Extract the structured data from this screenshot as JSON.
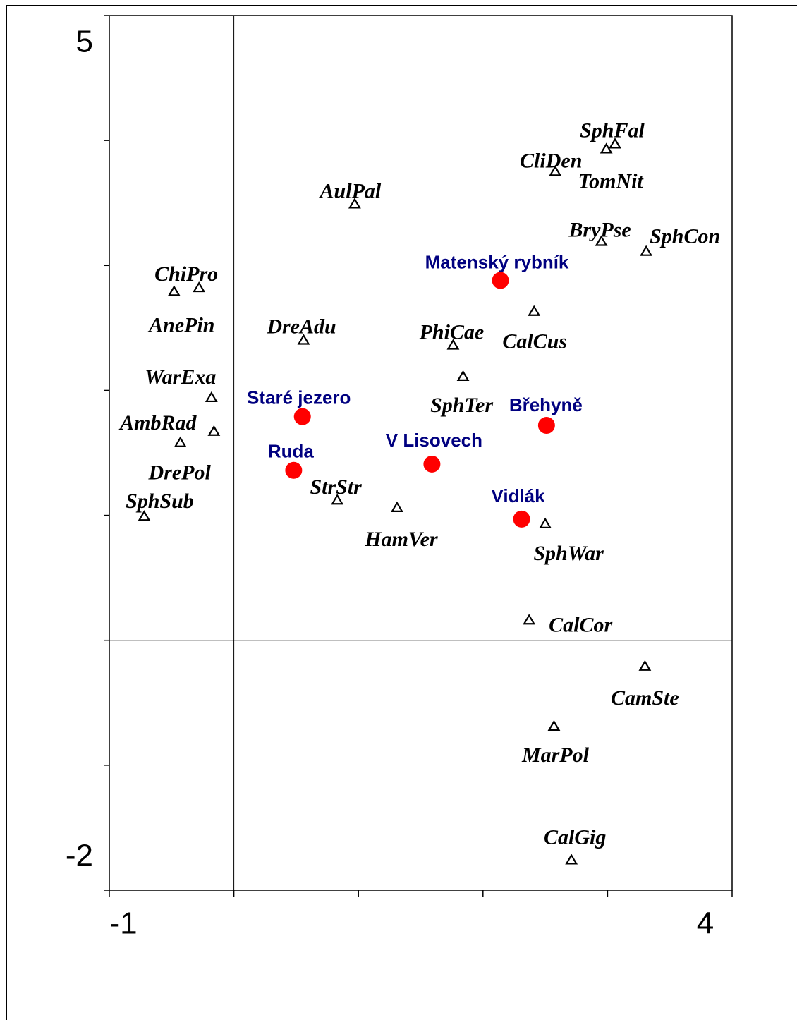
{
  "chart_data": {
    "type": "scatter",
    "xlim": [
      -1,
      4
    ],
    "ylim": [
      -2,
      5
    ],
    "xticks": [
      -1,
      4
    ],
    "yticks": [
      -2,
      5
    ],
    "xminorticks": [
      0,
      1,
      2,
      3
    ],
    "yminorticks": [
      -1,
      0,
      1,
      2,
      3,
      4
    ],
    "zero_lines": true,
    "species": {
      "color": "#000000",
      "labels": [
        "SphFal",
        "TomNit",
        "CliDen",
        "AulPal",
        "BryPse",
        "SphCon",
        "ChiPro",
        "AnePin",
        "CalCus",
        "DreAdu",
        "PhiCae",
        "SphTer",
        "WarExa",
        "AmbRad",
        "DrePol",
        "SphSub",
        "StrStr",
        "HamVer",
        "SphWar",
        "CalCor",
        "CamSte",
        "MarPol",
        "CalGig"
      ],
      "x": [
        3.06,
        2.99,
        2.58,
        0.97,
        2.95,
        3.31,
        -0.28,
        -0.48,
        2.41,
        0.56,
        1.76,
        1.84,
        -0.18,
        -0.16,
        -0.43,
        -0.72,
        0.83,
        1.31,
        2.5,
        2.37,
        3.3,
        2.57,
        2.71
      ],
      "y": [
        3.97,
        3.93,
        3.75,
        3.49,
        3.19,
        3.11,
        2.82,
        2.79,
        2.63,
        2.4,
        2.36,
        2.11,
        1.94,
        1.67,
        1.58,
        0.99,
        1.12,
        1.06,
        0.93,
        0.16,
        -0.21,
        -0.69,
        -1.76
      ]
    },
    "sites": {
      "color": "#ff0000",
      "label_color": "#000080",
      "labels": [
        "Matenský rybník",
        "Staré jezero",
        "Břehyně",
        "V Lisovech",
        "Ruda",
        "Vidlák"
      ],
      "x": [
        2.14,
        0.55,
        2.51,
        1.59,
        0.48,
        2.31
      ],
      "y": [
        2.88,
        1.79,
        1.72,
        1.41,
        1.36,
        0.97
      ]
    }
  }
}
